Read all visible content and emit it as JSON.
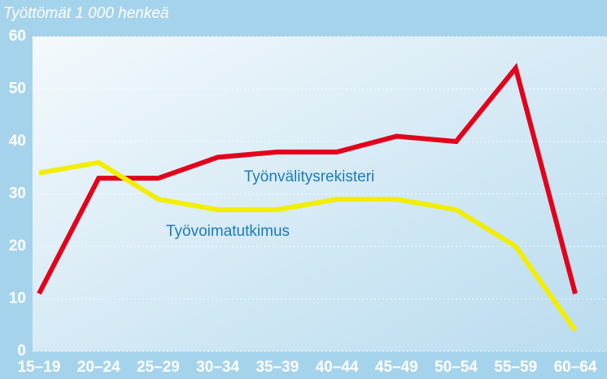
{
  "chart_data": {
    "type": "line",
    "title": "Työttömät 1 000 henkeä",
    "categories": [
      "15–19",
      "20–24",
      "25–29",
      "30–34",
      "35–39",
      "40–44",
      "45–49",
      "50–54",
      "55–59",
      "60–64"
    ],
    "series": [
      {
        "name": "Työnvälitysrekisteri",
        "color": "#e3001b",
        "values": [
          11,
          33,
          33,
          37,
          38,
          38,
          41,
          40,
          54,
          11
        ]
      },
      {
        "name": "Työvoimatutkimus",
        "color": "#f2ee00",
        "values": [
          34,
          36,
          29,
          27,
          27,
          29,
          29,
          27,
          20,
          4
        ]
      }
    ],
    "ylim": [
      0,
      60
    ],
    "yticks": [
      0,
      10,
      20,
      30,
      40,
      50,
      60
    ],
    "grid": true
  }
}
